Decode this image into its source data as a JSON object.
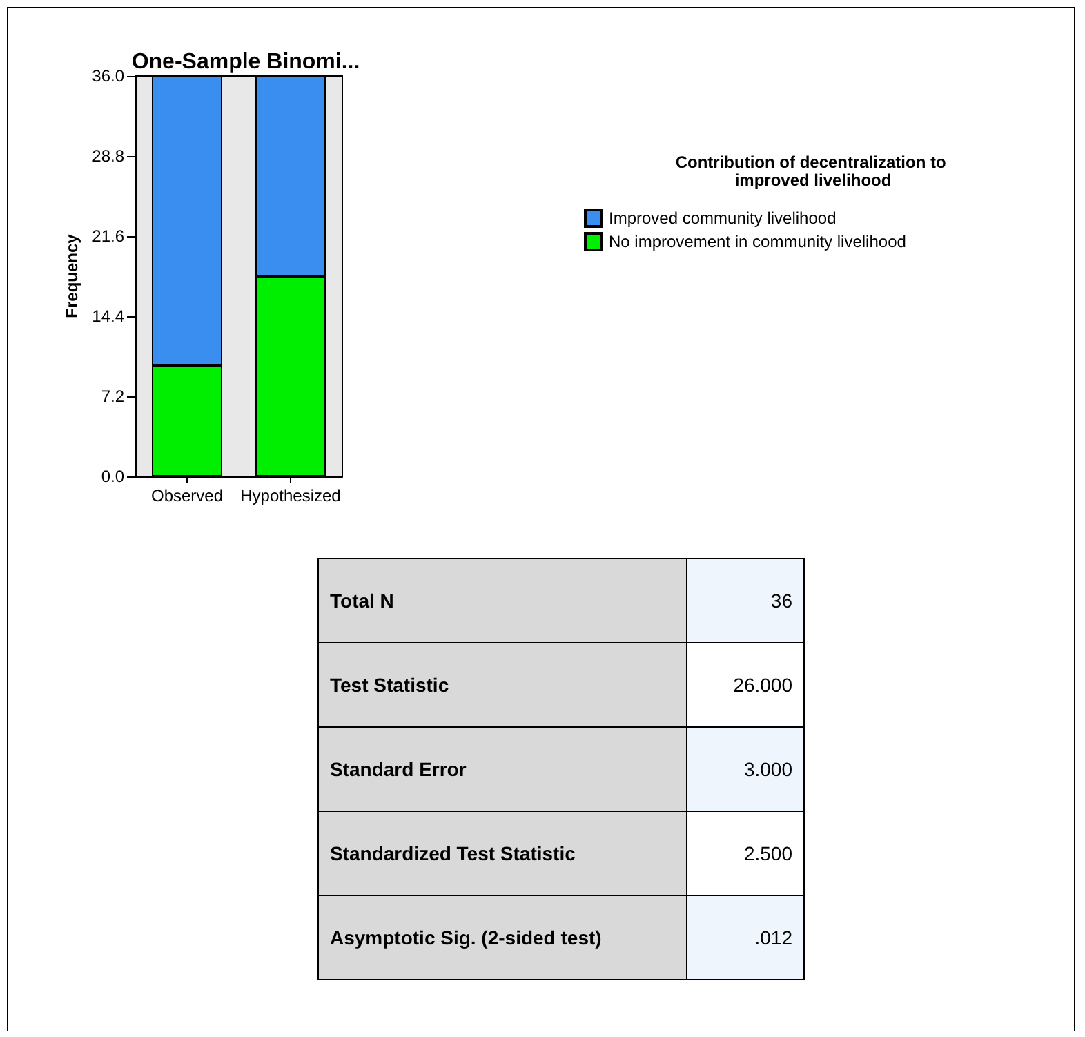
{
  "chart_data": [
    {
      "type": "bar",
      "title": "One-Sample Binomi...",
      "ylabel": "Frequency",
      "legend_title": "Contribution of decentralization to improved livelihood",
      "categories": [
        "Observed",
        "Hypothesized"
      ],
      "stacked": true,
      "series": [
        {
          "name": "No improvement in community livelihood",
          "color": "#00ee00",
          "values": [
            10,
            18
          ]
        },
        {
          "name": "Improved community livelihood",
          "color": "#3a8ef0",
          "values": [
            26,
            18
          ]
        }
      ],
      "ylim": [
        0,
        36
      ],
      "yticks": [
        {
          "value": 0,
          "label": "0.0"
        },
        7.2,
        14.4,
        21.6,
        28.8,
        {
          "value": 36,
          "label": "36.0"
        }
      ],
      "grid": false,
      "legend": "right"
    },
    {
      "type": "other",
      "categories": [
        "Total N",
        "Test Statistic",
        "Standard Error",
        "Standardized Test Statistic",
        "Asymptotic Sig. (2-sided test)"
      ],
      "values": [
        36,
        26,
        3,
        2.5,
        0.012
      ],
      "value_labels": [
        "36",
        "26.000",
        "3.000",
        "2.500",
        ".012"
      ]
    }
  ]
}
